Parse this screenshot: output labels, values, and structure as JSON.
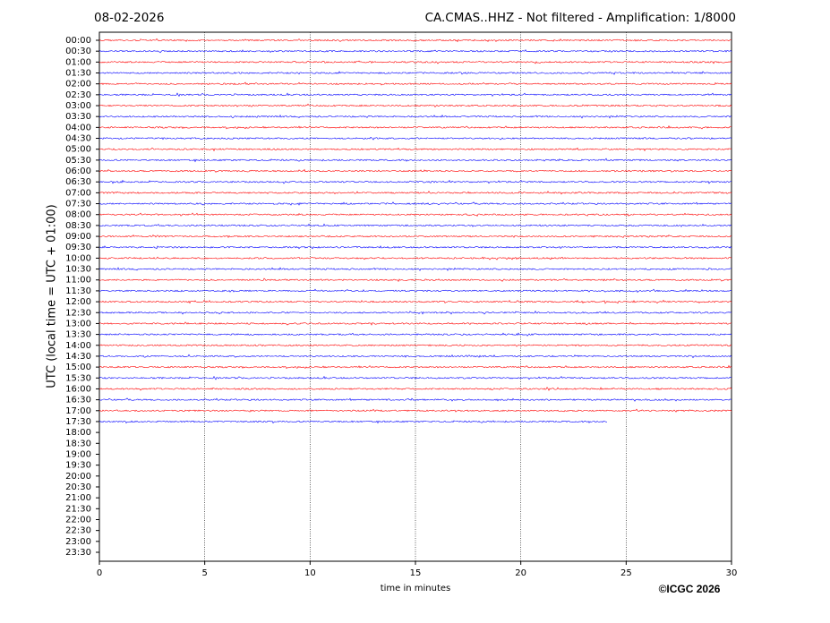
{
  "chart_data": {
    "type": "helicorder",
    "title": "CA.CMAS..HHZ - Not filtered - Amplification: 1/8000",
    "date": "08-02-2026",
    "y_label": "UTC (local time = UTC + 01:00)",
    "x_label": "time in minutes",
    "credit": "©ICGC 2026",
    "categories": [
      "00:00",
      "00:30",
      "01:00",
      "01:30",
      "02:00",
      "02:30",
      "03:00",
      "03:30",
      "04:00",
      "04:30",
      "05:00",
      "05:30",
      "06:00",
      "06:30",
      "07:00",
      "07:30",
      "08:00",
      "08:30",
      "09:00",
      "09:30",
      "10:00",
      "10:30",
      "11:00",
      "11:30",
      "12:00",
      "12:30",
      "13:00",
      "13:30",
      "14:00",
      "14:30",
      "15:00",
      "15:30",
      "16:00",
      "16:30",
      "17:00",
      "17:30",
      "18:00",
      "18:30",
      "19:00",
      "19:30",
      "20:00",
      "20:30",
      "21:00",
      "21:30",
      "22:00",
      "22:30",
      "23:00",
      "23:30"
    ],
    "values": [
      30,
      30,
      30,
      30,
      30,
      30,
      30,
      30,
      30,
      30,
      30,
      30,
      30,
      30,
      30,
      30,
      30,
      30,
      30,
      30,
      30,
      30,
      30,
      30,
      30,
      30,
      30,
      30,
      30,
      30,
      30,
      30,
      30,
      30,
      30,
      24.1,
      null,
      null,
      null,
      null,
      null,
      null,
      null,
      null,
      null,
      null,
      null,
      null
    ],
    "colors": [
      "#ff0000",
      "#0000ff"
    ],
    "xlim": [
      0,
      30
    ],
    "xticks": [
      0,
      5,
      10,
      15,
      20,
      25,
      30
    ],
    "grid": true
  }
}
